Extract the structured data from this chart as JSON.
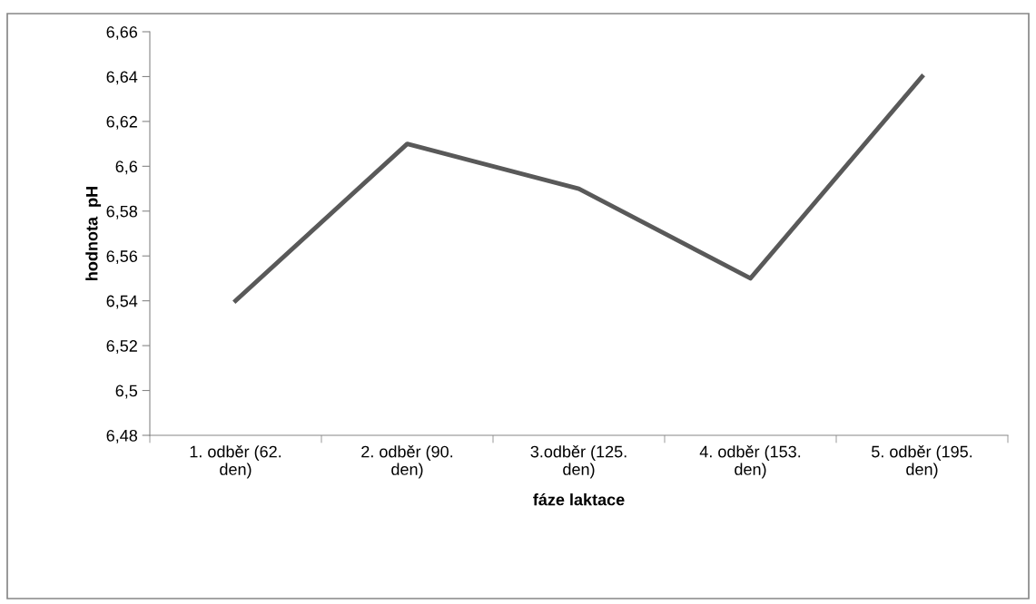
{
  "chart_data": {
    "type": "line",
    "xlabel": "fáze laktace",
    "ylabel": "hodnota  pH",
    "categories": [
      "1. odběr (62. den)",
      "2. odběr (90. den)",
      "3.odběr (125. den)",
      "4. odběr (153. den)",
      "5. odběr (195. den)"
    ],
    "series": [
      {
        "color": "#595959",
        "values": [
          6.54,
          6.61,
          6.59,
          6.55,
          6.64
        ]
      }
    ],
    "ylim": [
      6.48,
      6.66
    ],
    "yticks": [
      {
        "value": 6.48,
        "label": "6,48"
      },
      {
        "value": 6.5,
        "label": "6,5"
      },
      {
        "value": 6.52,
        "label": "6,52"
      },
      {
        "value": 6.54,
        "label": "6,54"
      },
      {
        "value": 6.56,
        "label": "6,56"
      },
      {
        "value": 6.58,
        "label": "6,58"
      },
      {
        "value": 6.6,
        "label": "6,6"
      },
      {
        "value": 6.62,
        "label": "6,62"
      },
      {
        "value": 6.64,
        "label": "6,64"
      },
      {
        "value": 6.66,
        "label": "6,66"
      }
    ],
    "grid": false,
    "legend": false,
    "marker": "none",
    "line_style": "solid"
  }
}
